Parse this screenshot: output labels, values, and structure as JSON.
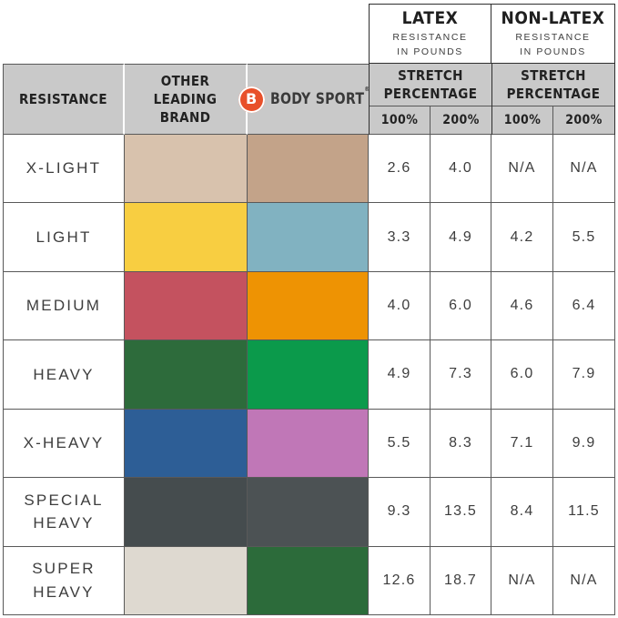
{
  "header": {
    "latex_title": "LATEX",
    "latex_subtitle": "RESISTANCE\nIN POUNDS",
    "nonlatex_title": "NON-LATEX",
    "nonlatex_subtitle": "RESISTANCE\nIN POUNDS",
    "resistance_label": "RESISTANCE",
    "other_brand_label": "OTHER\nLEADING\nBRAND",
    "stretch_label_latex": "STRETCH\nPERCENTAGE",
    "stretch_label_nonlatex": "STRETCH\nPERCENTAGE",
    "pct_100": "100%",
    "pct_200": "200%"
  },
  "brand": {
    "logo_letter": "B",
    "name": "BODY SPORT",
    "registered_mark": "®",
    "logo_color": "#e8502a"
  },
  "colors": {
    "header_bg": "#c9c9c9",
    "grid_line": "#595959",
    "box_border": "#2f2f2f",
    "text": "#3d3d3d"
  },
  "rows": [
    {
      "label": "X-LIGHT",
      "other_brand_color": "#d8c2ad",
      "body_sport_color": "#c3a389",
      "latex_100": "2.6",
      "latex_200": "4.0",
      "non_latex_100": "N/A",
      "non_latex_200": "N/A"
    },
    {
      "label": "LIGHT",
      "other_brand_color": "#f8ce41",
      "body_sport_color": "#81b2c1",
      "latex_100": "3.3",
      "latex_200": "4.9",
      "non_latex_100": "4.2",
      "non_latex_200": "5.5"
    },
    {
      "label": "MEDIUM",
      "other_brand_color": "#c4525f",
      "body_sport_color": "#ee9303",
      "latex_100": "4.0",
      "latex_200": "6.0",
      "non_latex_100": "4.6",
      "non_latex_200": "6.4"
    },
    {
      "label": "HEAVY",
      "other_brand_color": "#2d6b3b",
      "body_sport_color": "#0b9a4b",
      "latex_100": "4.9",
      "latex_200": "7.3",
      "non_latex_100": "6.0",
      "non_latex_200": "7.9"
    },
    {
      "label": "X-HEAVY",
      "other_brand_color": "#2d5e96",
      "body_sport_color": "#c077b7",
      "latex_100": "5.5",
      "latex_200": "8.3",
      "non_latex_100": "7.1",
      "non_latex_200": "9.9"
    },
    {
      "label": "SPECIAL\nHEAVY",
      "other_brand_color": "#454c4e",
      "body_sport_color": "#4c5254",
      "latex_100": "9.3",
      "latex_200": "13.5",
      "non_latex_100": "8.4",
      "non_latex_200": "11.5"
    },
    {
      "label": "SUPER\nHEAVY",
      "other_brand_color": "#ded9d0",
      "body_sport_color": "#2c6b3a",
      "latex_100": "12.6",
      "latex_200": "18.7",
      "non_latex_100": "N/A",
      "non_latex_200": "N/A"
    }
  ],
  "chart_data": {
    "type": "table",
    "title": "Body Sport vs Other Leading Brand resistance band comparison",
    "column_groups": [
      "LATEX RESISTANCE IN POUNDS",
      "NON-LATEX RESISTANCE IN POUNDS"
    ],
    "columns": [
      "RESISTANCE",
      "OTHER LEADING BRAND",
      "BODY SPORT",
      "LATEX STRETCH 100%",
      "LATEX STRETCH 200%",
      "NON-LATEX STRETCH 100%",
      "NON-LATEX STRETCH 200%"
    ],
    "rows": [
      [
        "X-LIGHT",
        "tan #d8c2ad",
        "tan #c3a389",
        2.6,
        4.0,
        "N/A",
        "N/A"
      ],
      [
        "LIGHT",
        "yellow #f8ce41",
        "light blue #81b2c1",
        3.3,
        4.9,
        4.2,
        5.5
      ],
      [
        "MEDIUM",
        "red #c4525f",
        "orange #ee9303",
        4.0,
        6.0,
        4.6,
        6.4
      ],
      [
        "HEAVY",
        "dark green #2d6b3b",
        "green #0b9a4b",
        4.9,
        7.3,
        6.0,
        7.9
      ],
      [
        "X-HEAVY",
        "blue #2d5e96",
        "orchid #c077b7",
        5.5,
        8.3,
        7.1,
        9.9
      ],
      [
        "SPECIAL HEAVY",
        "dark gray #454c4e",
        "dark gray #4c5254",
        9.3,
        13.5,
        8.4,
        11.5
      ],
      [
        "SUPER HEAVY",
        "off-white #ded9d0",
        "dark green #2c6b3a",
        12.6,
        18.7,
        "N/A",
        "N/A"
      ]
    ]
  }
}
